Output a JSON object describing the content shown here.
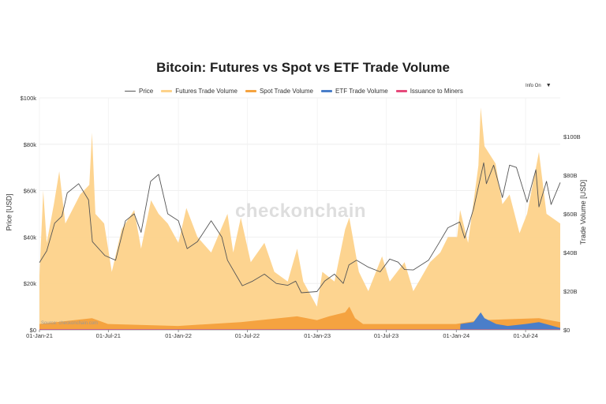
{
  "chart_data": {
    "type": "area",
    "title": "Bitcoin: Futures vs Spot vs ETF Trade Volume",
    "x_ticks": [
      "01-Jan-21",
      "01-Jul-21",
      "01-Jan-22",
      "01-Jul-22",
      "01-Jan-23",
      "01-Jul-23",
      "01-Jan-24",
      "01-Jul-24"
    ],
    "x_range": [
      "2021-01-01",
      "2024-09-30"
    ],
    "y_left": {
      "label": "Price [USD]",
      "range": [
        0,
        100000
      ],
      "ticks": [
        "$0",
        "$20k",
        "$40k",
        "$60k",
        "$80k",
        "$100k"
      ]
    },
    "y_right": {
      "label": "Trade Volume [USD]",
      "range": [
        0,
        120
      ],
      "unit": "B",
      "ticks": [
        "$0",
        "$20B",
        "$40B",
        "$60B",
        "$80B",
        "$100B"
      ]
    },
    "grid": true,
    "legend_position": "top",
    "series": [
      {
        "name": "Price",
        "axis": "left",
        "color": "#555555",
        "points": [
          [
            "2021-01-01",
            29000
          ],
          [
            "2021-01-20",
            34000
          ],
          [
            "2021-02-10",
            46000
          ],
          [
            "2021-03-01",
            49000
          ],
          [
            "2021-03-15",
            59000
          ],
          [
            "2021-04-14",
            63000
          ],
          [
            "2021-05-10",
            56000
          ],
          [
            "2021-05-20",
            38000
          ],
          [
            "2021-06-22",
            32000
          ],
          [
            "2021-07-20",
            30000
          ],
          [
            "2021-08-15",
            47000
          ],
          [
            "2021-09-07",
            50000
          ],
          [
            "2021-09-25",
            42000
          ],
          [
            "2021-10-20",
            64000
          ],
          [
            "2021-11-10",
            67000
          ],
          [
            "2021-12-04",
            50000
          ],
          [
            "2022-01-01",
            47000
          ],
          [
            "2022-01-24",
            35000
          ],
          [
            "2022-02-20",
            38000
          ],
          [
            "2022-03-28",
            47000
          ],
          [
            "2022-04-25",
            40000
          ],
          [
            "2022-05-10",
            30000
          ],
          [
            "2022-06-18",
            19000
          ],
          [
            "2022-07-15",
            21000
          ],
          [
            "2022-08-15",
            24000
          ],
          [
            "2022-09-15",
            20000
          ],
          [
            "2022-10-15",
            19200
          ],
          [
            "2022-11-05",
            21000
          ],
          [
            "2022-11-20",
            16000
          ],
          [
            "2022-12-31",
            16500
          ],
          [
            "2023-01-20",
            21000
          ],
          [
            "2023-02-15",
            24000
          ],
          [
            "2023-03-10",
            20000
          ],
          [
            "2023-03-25",
            28000
          ],
          [
            "2023-04-14",
            30000
          ],
          [
            "2023-05-15",
            27000
          ],
          [
            "2023-06-15",
            25000
          ],
          [
            "2023-07-10",
            30500
          ],
          [
            "2023-08-01",
            29200
          ],
          [
            "2023-08-18",
            26000
          ],
          [
            "2023-09-10",
            25800
          ],
          [
            "2023-10-20",
            30000
          ],
          [
            "2023-11-15",
            37000
          ],
          [
            "2023-12-10",
            44000
          ],
          [
            "2024-01-10",
            46500
          ],
          [
            "2024-01-23",
            39500
          ],
          [
            "2024-02-15",
            52000
          ],
          [
            "2024-03-13",
            72000
          ],
          [
            "2024-03-20",
            63000
          ],
          [
            "2024-04-08",
            71000
          ],
          [
            "2024-05-01",
            57000
          ],
          [
            "2024-05-20",
            71000
          ],
          [
            "2024-06-07",
            70000
          ],
          [
            "2024-07-05",
            55000
          ],
          [
            "2024-07-28",
            69000
          ],
          [
            "2024-08-05",
            53000
          ],
          [
            "2024-08-25",
            64000
          ],
          [
            "2024-09-06",
            54000
          ],
          [
            "2024-09-30",
            63500
          ]
        ]
      },
      {
        "name": "Futures Trade Volume",
        "axis": "right",
        "color": "#fdd28a",
        "points": [
          [
            "2021-01-01",
            28
          ],
          [
            "2021-01-11",
            72
          ],
          [
            "2021-01-20",
            45
          ],
          [
            "2021-02-08",
            65
          ],
          [
            "2021-02-22",
            82
          ],
          [
            "2021-03-10",
            55
          ],
          [
            "2021-04-18",
            70
          ],
          [
            "2021-05-12",
            75
          ],
          [
            "2021-05-19",
            102
          ],
          [
            "2021-05-28",
            60
          ],
          [
            "2021-06-20",
            55
          ],
          [
            "2021-07-10",
            30
          ],
          [
            "2021-08-05",
            52
          ],
          [
            "2021-09-07",
            62
          ],
          [
            "2021-09-25",
            42
          ],
          [
            "2021-10-21",
            67
          ],
          [
            "2021-11-10",
            60
          ],
          [
            "2021-12-04",
            55
          ],
          [
            "2022-01-01",
            45
          ],
          [
            "2022-01-22",
            63
          ],
          [
            "2022-02-20",
            48
          ],
          [
            "2022-03-28",
            40
          ],
          [
            "2022-05-10",
            60
          ],
          [
            "2022-05-25",
            40
          ],
          [
            "2022-06-14",
            58
          ],
          [
            "2022-07-10",
            35
          ],
          [
            "2022-08-15",
            45
          ],
          [
            "2022-09-10",
            30
          ],
          [
            "2022-10-15",
            25
          ],
          [
            "2022-11-09",
            42
          ],
          [
            "2022-11-25",
            25
          ],
          [
            "2022-12-31",
            12
          ],
          [
            "2023-01-14",
            30
          ],
          [
            "2023-02-15",
            25
          ],
          [
            "2023-03-15",
            52
          ],
          [
            "2023-03-26",
            58
          ],
          [
            "2023-04-20",
            30
          ],
          [
            "2023-05-15",
            20
          ],
          [
            "2023-06-20",
            38
          ],
          [
            "2023-07-10",
            25
          ],
          [
            "2023-08-18",
            35
          ],
          [
            "2023-09-10",
            20
          ],
          [
            "2023-10-24",
            35
          ],
          [
            "2023-11-20",
            40
          ],
          [
            "2023-12-10",
            48
          ],
          [
            "2024-01-03",
            48
          ],
          [
            "2024-01-11",
            62
          ],
          [
            "2024-02-01",
            45
          ],
          [
            "2024-02-28",
            85
          ],
          [
            "2024-03-05",
            115
          ],
          [
            "2024-03-15",
            95
          ],
          [
            "2024-04-13",
            86
          ],
          [
            "2024-05-01",
            65
          ],
          [
            "2024-05-20",
            70
          ],
          [
            "2024-06-15",
            50
          ],
          [
            "2024-07-05",
            60
          ],
          [
            "2024-08-05",
            92
          ],
          [
            "2024-08-25",
            60
          ],
          [
            "2024-09-30",
            55
          ]
        ]
      },
      {
        "name": "Spot Trade Volume",
        "axis": "right",
        "color": "#f5a340",
        "points": [
          [
            "2021-01-01",
            3
          ],
          [
            "2021-05-19",
            6
          ],
          [
            "2021-06-30",
            3
          ],
          [
            "2021-12-31",
            2
          ],
          [
            "2022-06-14",
            4
          ],
          [
            "2022-11-09",
            7
          ],
          [
            "2022-12-31",
            5
          ],
          [
            "2023-02-01",
            7
          ],
          [
            "2023-03-15",
            9
          ],
          [
            "2023-03-26",
            12
          ],
          [
            "2023-04-10",
            6
          ],
          [
            "2023-05-01",
            3
          ],
          [
            "2023-12-31",
            3
          ],
          [
            "2024-03-05",
            5
          ],
          [
            "2024-08-05",
            6
          ],
          [
            "2024-09-30",
            4
          ]
        ]
      },
      {
        "name": "ETF Trade Volume",
        "axis": "right",
        "color": "#4a7ec9",
        "points": [
          [
            "2024-01-11",
            0
          ],
          [
            "2024-01-12",
            3
          ],
          [
            "2024-02-15",
            4
          ],
          [
            "2024-03-05",
            9
          ],
          [
            "2024-03-15",
            6
          ],
          [
            "2024-04-15",
            3
          ],
          [
            "2024-05-15",
            2
          ],
          [
            "2024-07-01",
            3
          ],
          [
            "2024-08-05",
            4
          ],
          [
            "2024-09-30",
            1
          ]
        ]
      },
      {
        "name": "Issuance to Miners",
        "axis": "right",
        "color": "#e64a7b",
        "points": [
          [
            "2021-01-01",
            0.4
          ],
          [
            "2024-09-30",
            0.3
          ]
        ]
      }
    ],
    "watermark": "checkonchain",
    "source": "Source: checkonchain.com"
  },
  "ui": {
    "toggle_label": "Info On",
    "toggle_icon": "chevron-down-icon",
    "toggle_glyph": "▼"
  }
}
